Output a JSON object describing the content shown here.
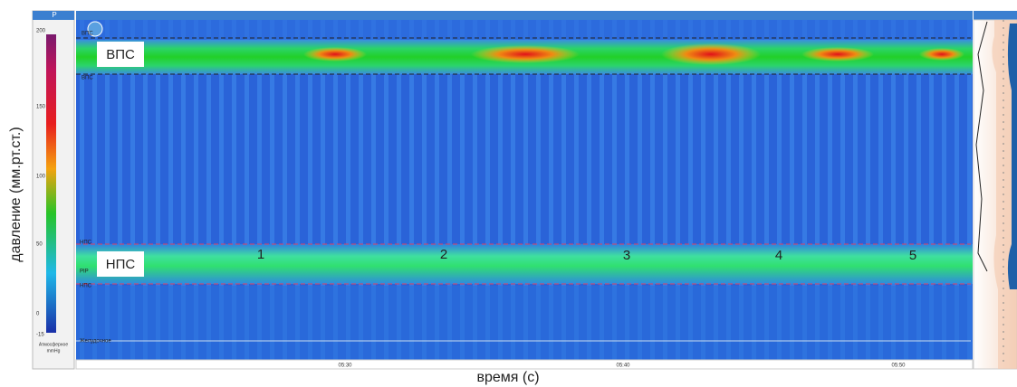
{
  "axis_label_y": "давление (мм.рт.ст.)",
  "axis_label_x": "время (с)",
  "left_panel": {
    "header": "P",
    "scale_labels": [
      "200",
      "150",
      "100",
      "50",
      "0",
      "-15"
    ],
    "caption": "Атмосферное",
    "unit": "mmHg"
  },
  "plot": {
    "band_upper_label": "ВПС",
    "band_lower_label": "НПС",
    "small_labels": [
      "ВПС",
      "ВПС",
      "НПС",
      "PIP",
      "НПС",
      "Желудочное"
    ],
    "events": [
      "1",
      "2",
      "3",
      "4",
      "5"
    ],
    "time_labels": [
      "05:30",
      "05:40",
      "05:50"
    ]
  }
}
